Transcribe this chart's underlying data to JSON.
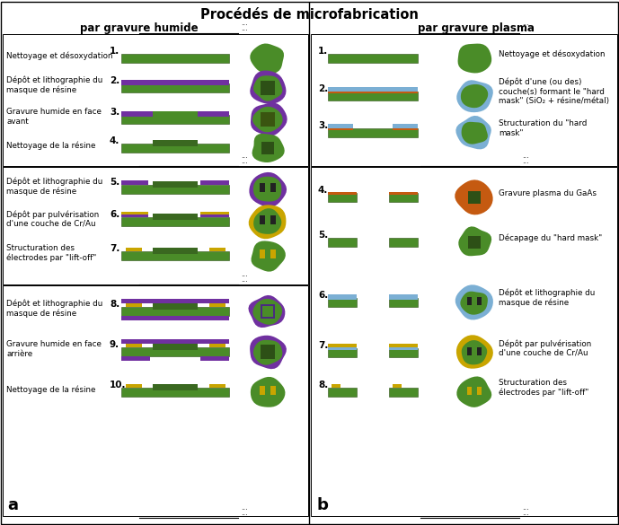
{
  "title": "Procédés de microfabrication",
  "subtitle_left": "par gravure humide",
  "subtitle_right": "par gravure plasma",
  "label_a": "a",
  "label_b": "b",
  "bg_color": "#ffffff",
  "G": "#4a8c28",
  "PUR": "#7030a0",
  "BLU": "#7bafd4",
  "ORG": "#c55a11",
  "GLD": "#c9a500",
  "DG": "#2d5016",
  "RED": "#d04010",
  "steps_left": [
    {
      "num": "1.",
      "label": "Nettoyage et désoxydation"
    },
    {
      "num": "2.",
      "label": "Dépôt et lithographie du\nmasque de résine"
    },
    {
      "num": "3.",
      "label": "Gravure humide en face\navant"
    },
    {
      "num": "4.",
      "label": "Nettoyage de la résine"
    },
    {
      "num": "5.",
      "label": "Dépôt et lithographie du\nmasque de résine"
    },
    {
      "num": "6.",
      "label": "Dépôt par pulvérisation\nd'une couche de Cr/Au"
    },
    {
      "num": "7.",
      "label": "Structuration des\nélectrodes par \"lift-off\""
    },
    {
      "num": "8.",
      "label": "Dépôt et lithographie du\nmasque de résine"
    },
    {
      "num": "9.",
      "label": "Gravure humide en face\narrière"
    },
    {
      "num": "10.",
      "label": "Nettoyage de la résine"
    }
  ],
  "steps_right": [
    {
      "num": "1.",
      "label": "Nettoyage et désoxydation"
    },
    {
      "num": "2.",
      "label": "Dépôt d'une (ou des)\ncouche(s) formant le \"hard\nmask\" (SiO₂ + résine/métal)"
    },
    {
      "num": "3.",
      "label": "Structuration du \"hard\nmask\""
    },
    {
      "num": "4.",
      "label": "Gravure plasma du GaAs"
    },
    {
      "num": "5.",
      "label": "Décapage du \"hard mask\""
    },
    {
      "num": "6.",
      "label": "Dépôt et lithographie du\nmasque de résine"
    },
    {
      "num": "7.",
      "label": "Dépôt par pulvérisation\nd'une couche de Cr/Au"
    },
    {
      "num": "8.",
      "label": "Structuration des\nélectrodes par \"lift-off\""
    }
  ]
}
